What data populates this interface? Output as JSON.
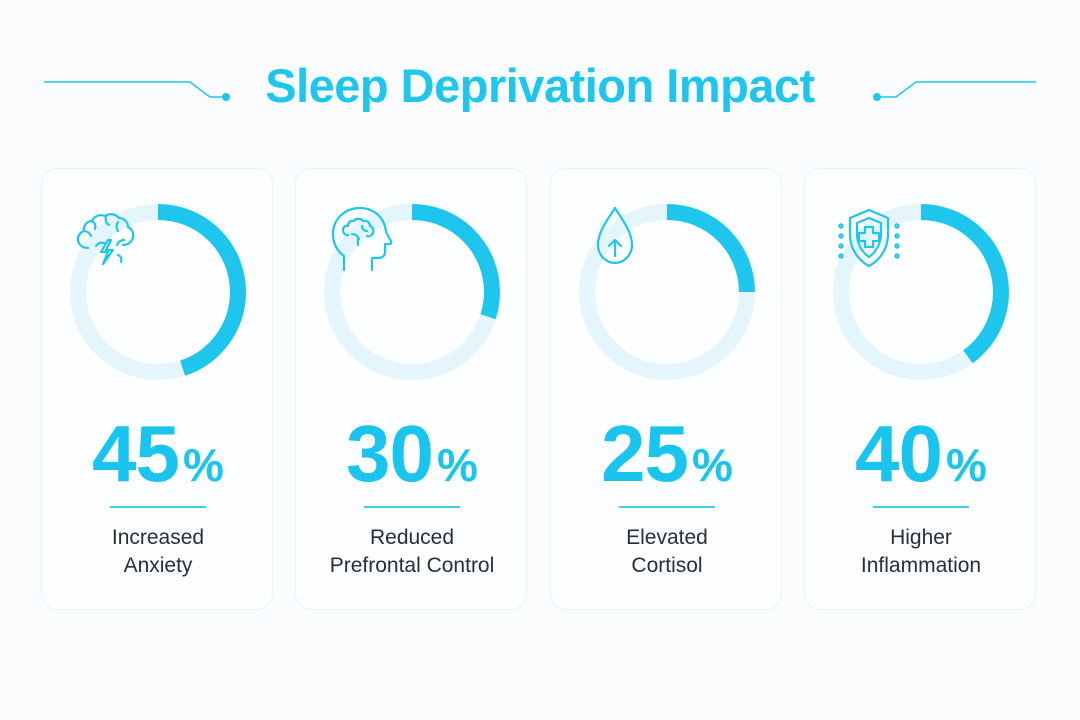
{
  "title": "Sleep Deprivation Impact",
  "colors": {
    "accent": "#1ec6ee",
    "ring_track": "#e4f6fc",
    "text": "#2a2f36"
  },
  "stats": [
    {
      "value": "45",
      "unit": "%",
      "percent": 45,
      "label_line1": "Increased",
      "label_line2": "Anxiety",
      "icon": "brain-lightning-icon"
    },
    {
      "value": "30",
      "unit": "%",
      "percent": 30,
      "label_line1": "Reduced",
      "label_line2": "Prefrontal Control",
      "icon": "head-brain-icon"
    },
    {
      "value": "25",
      "unit": "%",
      "percent": 25,
      "label_line1": "Elevated",
      "label_line2": "Cortisol",
      "icon": "droplet-arrow-up-icon"
    },
    {
      "value": "40",
      "unit": "%",
      "percent": 40,
      "label_line1": "Higher",
      "label_line2": "Inflammation",
      "icon": "shield-plus-icon"
    }
  ]
}
